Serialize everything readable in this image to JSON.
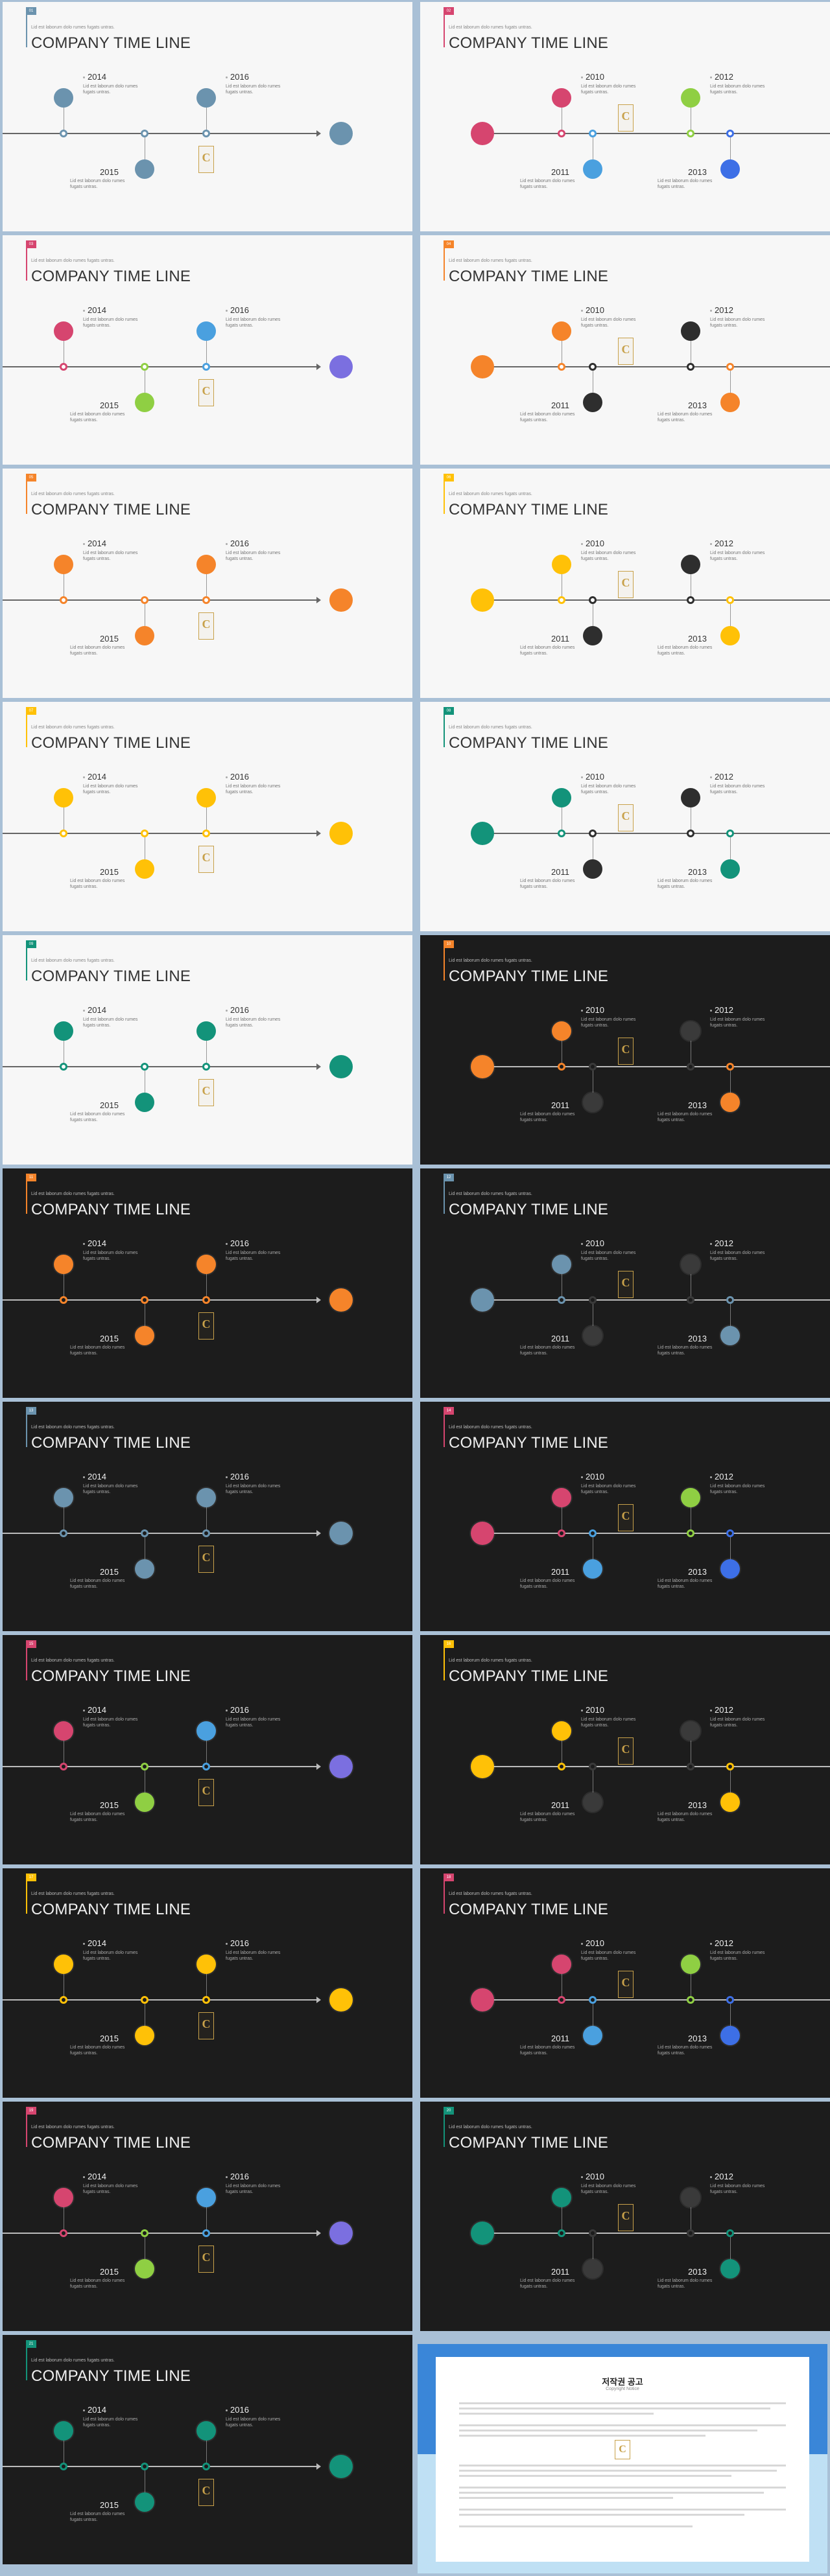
{
  "title": "COMPANY TIME LINE",
  "subtitle": "Lid est laborum dolo rumes fugats untras.",
  "note": "Lid est laborum dolo rumes fugats untras.",
  "logo_letter": "C",
  "colors": {
    "blue_gray": "#6b93ae",
    "pink": "#d6456f",
    "green": "#8fcf43",
    "sky": "#4aa0df",
    "royal": "#3d6fe6",
    "purple": "#7b6fe0",
    "orange": "#f5842a",
    "black": "#2e2e2e",
    "yellow": "#ffc107",
    "teal": "#13937a",
    "gold": "#c8a14a"
  },
  "slides": [
    {
      "layout": "A",
      "theme": "light",
      "badge": "01",
      "accent": "#6b93ae",
      "top1": "#6b93ae",
      "top2": "#6b93ae",
      "bottom": "#6b93ae",
      "end": "#6b93ae"
    },
    {
      "layout": "B",
      "theme": "light",
      "badge": "02",
      "accent": "#d6456f",
      "top1": "#d6456f",
      "top2": "#8fcf43",
      "bot1": "#4aa0df",
      "bot2": "#3d6fe6",
      "end": "#d6456f"
    },
    {
      "layout": "A",
      "theme": "light",
      "badge": "03",
      "accent": "#d6456f",
      "top1": "#d6456f",
      "top2": "#4aa0df",
      "bottom": "#8fcf43",
      "end": "#7b6fe0"
    },
    {
      "layout": "B",
      "theme": "light",
      "badge": "04",
      "accent": "#f5842a",
      "top1": "#f5842a",
      "top2": "#2e2e2e",
      "bot1": "#2e2e2e",
      "bot2": "#f5842a",
      "end": "#f5842a"
    },
    {
      "layout": "A",
      "theme": "light",
      "badge": "05",
      "accent": "#f5842a",
      "top1": "#f5842a",
      "top2": "#f5842a",
      "bottom": "#f5842a",
      "end": "#f5842a"
    },
    {
      "layout": "B",
      "theme": "light",
      "badge": "06",
      "accent": "#ffc107",
      "top1": "#ffc107",
      "top2": "#2e2e2e",
      "bot1": "#2e2e2e",
      "bot2": "#ffc107",
      "end": "#ffc107"
    },
    {
      "layout": "A",
      "theme": "light",
      "badge": "07",
      "accent": "#ffc107",
      "top1": "#ffc107",
      "top2": "#ffc107",
      "bottom": "#ffc107",
      "end": "#ffc107"
    },
    {
      "layout": "B",
      "theme": "light",
      "badge": "08",
      "accent": "#13937a",
      "top1": "#13937a",
      "top2": "#2e2e2e",
      "bot1": "#2e2e2e",
      "bot2": "#13937a",
      "end": "#13937a"
    },
    {
      "layout": "A",
      "theme": "light",
      "badge": "09",
      "accent": "#13937a",
      "top1": "#13937a",
      "top2": "#13937a",
      "bottom": "#13937a",
      "end": "#13937a"
    },
    {
      "layout": "B",
      "theme": "dark",
      "badge": "10",
      "accent": "#f5842a",
      "top1": "#f5842a",
      "top2": "#3a3a3a",
      "bot1": "#3a3a3a",
      "bot2": "#f5842a",
      "end": "#f5842a"
    },
    {
      "layout": "A",
      "theme": "dark",
      "badge": "11",
      "accent": "#f5842a",
      "top1": "#f5842a",
      "top2": "#f5842a",
      "bottom": "#f5842a",
      "end": "#f5842a"
    },
    {
      "layout": "B",
      "theme": "dark",
      "badge": "12",
      "accent": "#6b93ae",
      "top1": "#6b93ae",
      "top2": "#3a3a3a",
      "bot1": "#3a3a3a",
      "bot2": "#6b93ae",
      "end": "#6b93ae"
    },
    {
      "layout": "A",
      "theme": "dark",
      "badge": "13",
      "accent": "#6b93ae",
      "top1": "#6b93ae",
      "top2": "#6b93ae",
      "bottom": "#6b93ae",
      "end": "#6b93ae"
    },
    {
      "layout": "B",
      "theme": "dark",
      "badge": "14",
      "accent": "#d6456f",
      "top1": "#d6456f",
      "top2": "#8fcf43",
      "bot1": "#4aa0df",
      "bot2": "#3d6fe6",
      "end": "#d6456f"
    },
    {
      "layout": "A",
      "theme": "dark",
      "badge": "15",
      "accent": "#d6456f",
      "top1": "#d6456f",
      "top2": "#4aa0df",
      "bottom": "#8fcf43",
      "end": "#7b6fe0"
    },
    {
      "layout": "B",
      "theme": "dark",
      "badge": "16",
      "accent": "#ffc107",
      "top1": "#ffc107",
      "top2": "#3a3a3a",
      "bot1": "#3a3a3a",
      "bot2": "#ffc107",
      "end": "#ffc107"
    },
    {
      "layout": "A",
      "theme": "dark",
      "badge": "17",
      "accent": "#ffc107",
      "top1": "#ffc107",
      "top2": "#ffc107",
      "bottom": "#ffc107",
      "end": "#ffc107"
    },
    {
      "layout": "B",
      "theme": "dark",
      "badge": "18",
      "accent": "#d6456f",
      "top1": "#d6456f",
      "top2": "#8fcf43",
      "bot1": "#4aa0df",
      "bot2": "#3d6fe6",
      "end": "#d6456f"
    },
    {
      "layout": "A",
      "theme": "dark",
      "badge": "19",
      "accent": "#d6456f",
      "top1": "#d6456f",
      "top2": "#4aa0df",
      "bottom": "#8fcf43",
      "end": "#7b6fe0"
    },
    {
      "layout": "B",
      "theme": "dark",
      "badge": "20",
      "accent": "#13937a",
      "top1": "#13937a",
      "top2": "#3a3a3a",
      "bot1": "#3a3a3a",
      "bot2": "#13937a",
      "end": "#13937a"
    },
    {
      "layout": "A",
      "theme": "dark",
      "badge": "21",
      "accent": "#13937a",
      "top1": "#13937a",
      "top2": "#13937a",
      "bottom": "#13937a",
      "end": "#13937a"
    }
  ],
  "years_A": [
    "2014",
    "2016",
    "2015"
  ],
  "years_B": [
    "2010",
    "2012",
    "2011",
    "2013"
  ],
  "copyright": {
    "title": "저작권 공고",
    "subtitle": "Copyright Notice"
  }
}
